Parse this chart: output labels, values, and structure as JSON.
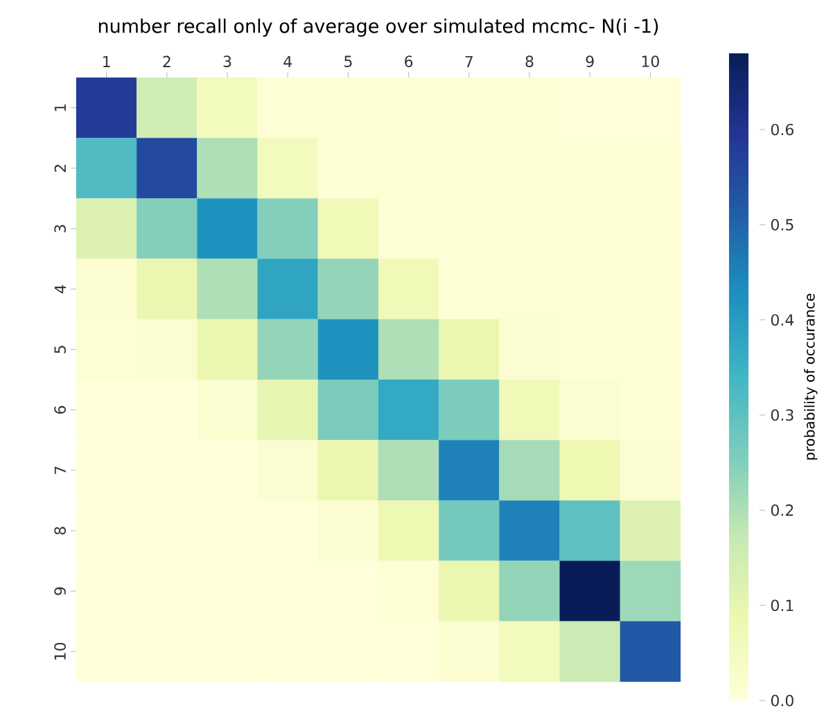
{
  "chart_data": {
    "type": "heatmap",
    "title": "number recall only of average over simulated mcmc- N(i -1)",
    "clabel": "probability of occurance",
    "categories": [
      "1",
      "2",
      "3",
      "4",
      "5",
      "6",
      "7",
      "8",
      "9",
      "10"
    ],
    "y_categories": [
      "1",
      "2",
      "3",
      "4",
      "5",
      "6",
      "7",
      "8",
      "9",
      "10"
    ],
    "cells": [
      [
        0.58,
        0.15,
        0.06,
        0.01,
        0.01,
        0.01,
        0.01,
        0.01,
        0.0,
        0.0
      ],
      [
        0.32,
        0.55,
        0.2,
        0.06,
        0.01,
        0.01,
        0.01,
        0.01,
        0.01,
        0.01
      ],
      [
        0.12,
        0.25,
        0.42,
        0.25,
        0.07,
        0.01,
        0.01,
        0.01,
        0.01,
        0.01
      ],
      [
        0.02,
        0.09,
        0.2,
        0.38,
        0.23,
        0.07,
        0.01,
        0.01,
        0.01,
        0.01
      ],
      [
        0.01,
        0.02,
        0.09,
        0.23,
        0.42,
        0.2,
        0.09,
        0.02,
        0.01,
        0.01
      ],
      [
        0.0,
        0.0,
        0.02,
        0.1,
        0.26,
        0.37,
        0.26,
        0.07,
        0.02,
        0.01
      ],
      [
        0.0,
        0.0,
        0.0,
        0.02,
        0.09,
        0.2,
        0.45,
        0.21,
        0.08,
        0.02
      ],
      [
        0.0,
        0.0,
        0.0,
        0.0,
        0.02,
        0.08,
        0.27,
        0.45,
        0.3,
        0.12
      ],
      [
        0.0,
        0.0,
        0.0,
        0.0,
        0.0,
        0.01,
        0.09,
        0.23,
        0.68,
        0.22
      ],
      [
        0.0,
        0.0,
        0.0,
        0.0,
        0.0,
        0.0,
        0.02,
        0.06,
        0.16,
        0.52
      ]
    ],
    "clim": [
      0,
      0.68
    ],
    "cticks": [
      {
        "value": 0,
        "label": "0.0"
      },
      {
        "value": 0.1,
        "label": "0.1"
      },
      {
        "value": 0.2,
        "label": "0.2"
      },
      {
        "value": 0.3,
        "label": "0.3"
      },
      {
        "value": 0.4,
        "label": "0.4"
      },
      {
        "value": 0.5,
        "label": "0.5"
      },
      {
        "value": 0.6,
        "label": "0.6"
      }
    ]
  }
}
